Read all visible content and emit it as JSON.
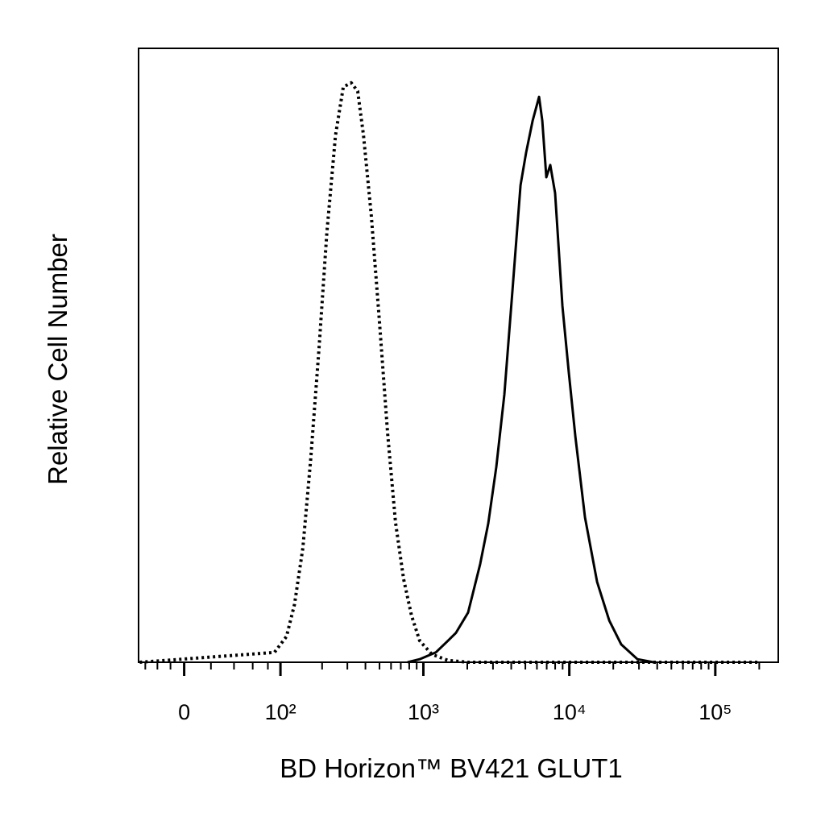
{
  "chart_data": {
    "type": "histogram-overlay",
    "xlabel": "BD Horizon™ BV421 GLUT1",
    "ylabel": "Relative Cell Number",
    "xscale": "biexponential",
    "xlim": [
      -36,
      270000
    ],
    "ylim": [
      0,
      100
    ],
    "xticks": [
      {
        "value": 0,
        "label": "0"
      },
      {
        "value": 100,
        "label": "10²"
      },
      {
        "value": 1000,
        "label": "10³"
      },
      {
        "value": 10000,
        "label": "10⁴"
      },
      {
        "value": 100000,
        "label": "10⁵"
      }
    ],
    "xminorticks": [
      -30,
      -20,
      -10,
      20,
      40,
      60,
      80,
      200,
      300,
      400,
      500,
      600,
      700,
      800,
      900,
      2000,
      3000,
      4000,
      5000,
      6000,
      7000,
      8000,
      9000,
      20000,
      30000,
      40000,
      50000,
      60000,
      70000,
      80000,
      90000,
      200000
    ],
    "series": [
      {
        "color": "#000000",
        "dash": "dotted",
        "x": [
          -35,
          90,
          111,
          127,
          146,
          166,
          190,
          216,
          248,
          281,
          319,
          354,
          388,
          439,
          499,
          568,
          644,
          731,
          830,
          943,
          1143,
          1474,
          2026,
          3370,
          200000
        ],
        "values": [
          0,
          1.6,
          4.2,
          9.4,
          18.6,
          33,
          51,
          70,
          85.8,
          93.7,
          94.4,
          93,
          85.8,
          72.7,
          55.6,
          37.3,
          22.8,
          13.6,
          7.6,
          3.5,
          1.3,
          0.3,
          0,
          0,
          0
        ]
      },
      {
        "color": "#000000",
        "dash": "solid",
        "x": [
          779,
          943,
          1217,
          1474,
          1674,
          2026,
          2452,
          2783,
          3160,
          3588,
          4080,
          4632,
          5060,
          5607,
          6205,
          6527,
          6962,
          7406,
          7993,
          8970,
          9925,
          11008,
          12811,
          15502,
          18768,
          22678,
          29302,
          37743
        ],
        "values": [
          0,
          0.5,
          1.6,
          3.5,
          4.8,
          8.1,
          16,
          22.6,
          31.8,
          43.6,
          60.6,
          77.7,
          83,
          88.2,
          92.1,
          88.2,
          79,
          81,
          76.4,
          58,
          47.2,
          36.7,
          23.6,
          13.1,
          6.8,
          2.9,
          0.5,
          0
        ]
      }
    ]
  }
}
